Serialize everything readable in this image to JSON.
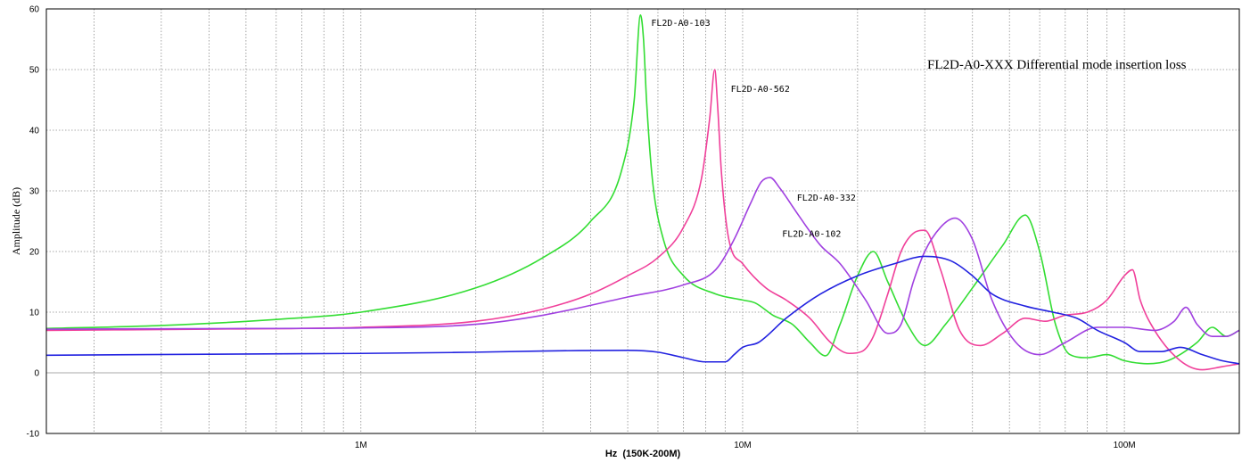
{
  "chart_data": {
    "type": "line",
    "title": "FL2D-A0-XXX Differential mode insertion loss",
    "xlabel": "Hz  (150K-200M)",
    "ylabel": "Amplitude (dB)",
    "x_scale": "log",
    "xlim": [
      150000,
      200000000
    ],
    "ylim": [
      -10,
      60
    ],
    "grid": true,
    "y_ticks": [
      "-10",
      "0",
      "10",
      "20",
      "30",
      "40",
      "50",
      "60"
    ],
    "x_ticks": [
      {
        "value": 1000000,
        "label": "1M"
      },
      {
        "value": 10000000,
        "label": "10M"
      },
      {
        "value": 100000000,
        "label": "100M"
      }
    ],
    "series": [
      {
        "name": "FL2D-A0-103",
        "color": "#33dd33",
        "x": [
          150000,
          300000,
          600000,
          1000000,
          2000000,
          3000000,
          4000000,
          4800000,
          5200000,
          5400000,
          5500000,
          5600000,
          5800000,
          6200000,
          7000000,
          8500000,
          10000000,
          10800000,
          12000000,
          13500000,
          15000000,
          16500000,
          18000000,
          20000000,
          22000000,
          24000000,
          27000000,
          30000000,
          34000000,
          40000000,
          48000000,
          55000000,
          60000000,
          66000000,
          72000000,
          80000000,
          90000000,
          100000000,
          115000000,
          130000000,
          155000000,
          170000000,
          185000000,
          200000000
        ],
        "y": [
          7.3,
          7.8,
          8.8,
          10,
          14,
          19,
          25,
          33,
          45,
          59,
          55,
          45,
          32,
          22,
          16,
          13,
          12,
          11.5,
          9.5,
          8,
          5,
          2.8,
          8,
          16,
          20,
          15,
          8,
          4.5,
          8,
          14,
          21,
          26,
          20,
          8,
          3,
          2.5,
          3,
          2,
          1.5,
          2,
          5,
          7.5,
          6,
          7
        ]
      },
      {
        "name": "FL2D-A0-562",
        "color": "#f0409a",
        "x": [
          150000,
          400000,
          1000000,
          2000000,
          3000000,
          4000000,
          5000000,
          6000000,
          7000000,
          7800000,
          8200000,
          8450000,
          8600000,
          8800000,
          9200000,
          10000000,
          11500000,
          13000000,
          15000000,
          17000000,
          19000000,
          20500000,
          22000000,
          24000000,
          26000000,
          28000000,
          30000000,
          33000000,
          37000000,
          42000000,
          48000000,
          55000000,
          62000000,
          70000000,
          80000000,
          90000000,
          100000000,
          105000000,
          110000000,
          120000000,
          140000000,
          160000000,
          180000000,
          200000000
        ],
        "y": [
          7,
          7.2,
          7.5,
          8.5,
          10.5,
          13,
          16,
          19,
          24,
          32,
          42,
          50,
          44,
          33,
          22,
          18,
          14,
          12,
          9,
          5,
          3.2,
          3.5,
          6,
          13,
          20,
          23,
          23.5,
          17,
          7,
          4.5,
          6.5,
          9,
          8.5,
          9.5,
          10,
          12,
          16,
          17,
          12,
          7,
          2,
          0.5,
          1,
          1.5
        ]
      },
      {
        "name": "FL2D-A0-332",
        "color": "#a040e0",
        "x": [
          150000,
          500000,
          1000000,
          2000000,
          3000000,
          5000000,
          7000000,
          8500000,
          9500000,
          10500000,
          11200000,
          11800000,
          12500000,
          14000000,
          16000000,
          18000000,
          21000000,
          24000000,
          26000000,
          28000000,
          30000000,
          33000000,
          36000000,
          40000000,
          45000000,
          52000000,
          60000000,
          70000000,
          85000000,
          100000000,
          120000000,
          135000000,
          145000000,
          155000000,
          170000000,
          185000000,
          200000000
        ],
        "y": [
          7.2,
          7.3,
          7.4,
          8,
          9.5,
          12.5,
          14.5,
          17,
          22,
          28,
          31.5,
          32.2,
          30.5,
          26,
          21,
          18,
          12,
          6.5,
          8,
          15,
          20,
          24,
          25.5,
          22,
          12,
          5,
          3,
          5,
          7.5,
          7.5,
          7,
          8.5,
          10.8,
          8,
          6,
          6,
          7
        ]
      },
      {
        "name": "FL2D-A0-102",
        "color": "#2222e0",
        "x": [
          150000,
          500000,
          1000000,
          2000000,
          3000000,
          5000000,
          6000000,
          7000000,
          8000000,
          9000000,
          9500000,
          10000000,
          11000000,
          13000000,
          16000000,
          20000000,
          25000000,
          30000000,
          35000000,
          40000000,
          45000000,
          55000000,
          65000000,
          75000000,
          85000000,
          100000000,
          110000000,
          125000000,
          140000000,
          160000000,
          180000000,
          200000000
        ],
        "y": [
          2.9,
          3.1,
          3.2,
          3.4,
          3.6,
          3.7,
          3.4,
          2.5,
          1.8,
          1.8,
          3,
          4.2,
          5,
          9,
          13,
          16,
          18,
          19.2,
          18.5,
          16,
          13,
          11,
          10,
          9,
          7,
          5,
          3.5,
          3.5,
          4.2,
          3,
          2,
          1.5
        ]
      }
    ],
    "annotations": [
      {
        "text": "FL2D-A0-103",
        "series": "FL2D-A0-103"
      },
      {
        "text": "FL2D-A0-562",
        "series": "FL2D-A0-562"
      },
      {
        "text": "FL2D-A0-332",
        "series": "FL2D-A0-332"
      },
      {
        "text": "FL2D-A0-102",
        "series": "FL2D-A0-102"
      }
    ]
  }
}
